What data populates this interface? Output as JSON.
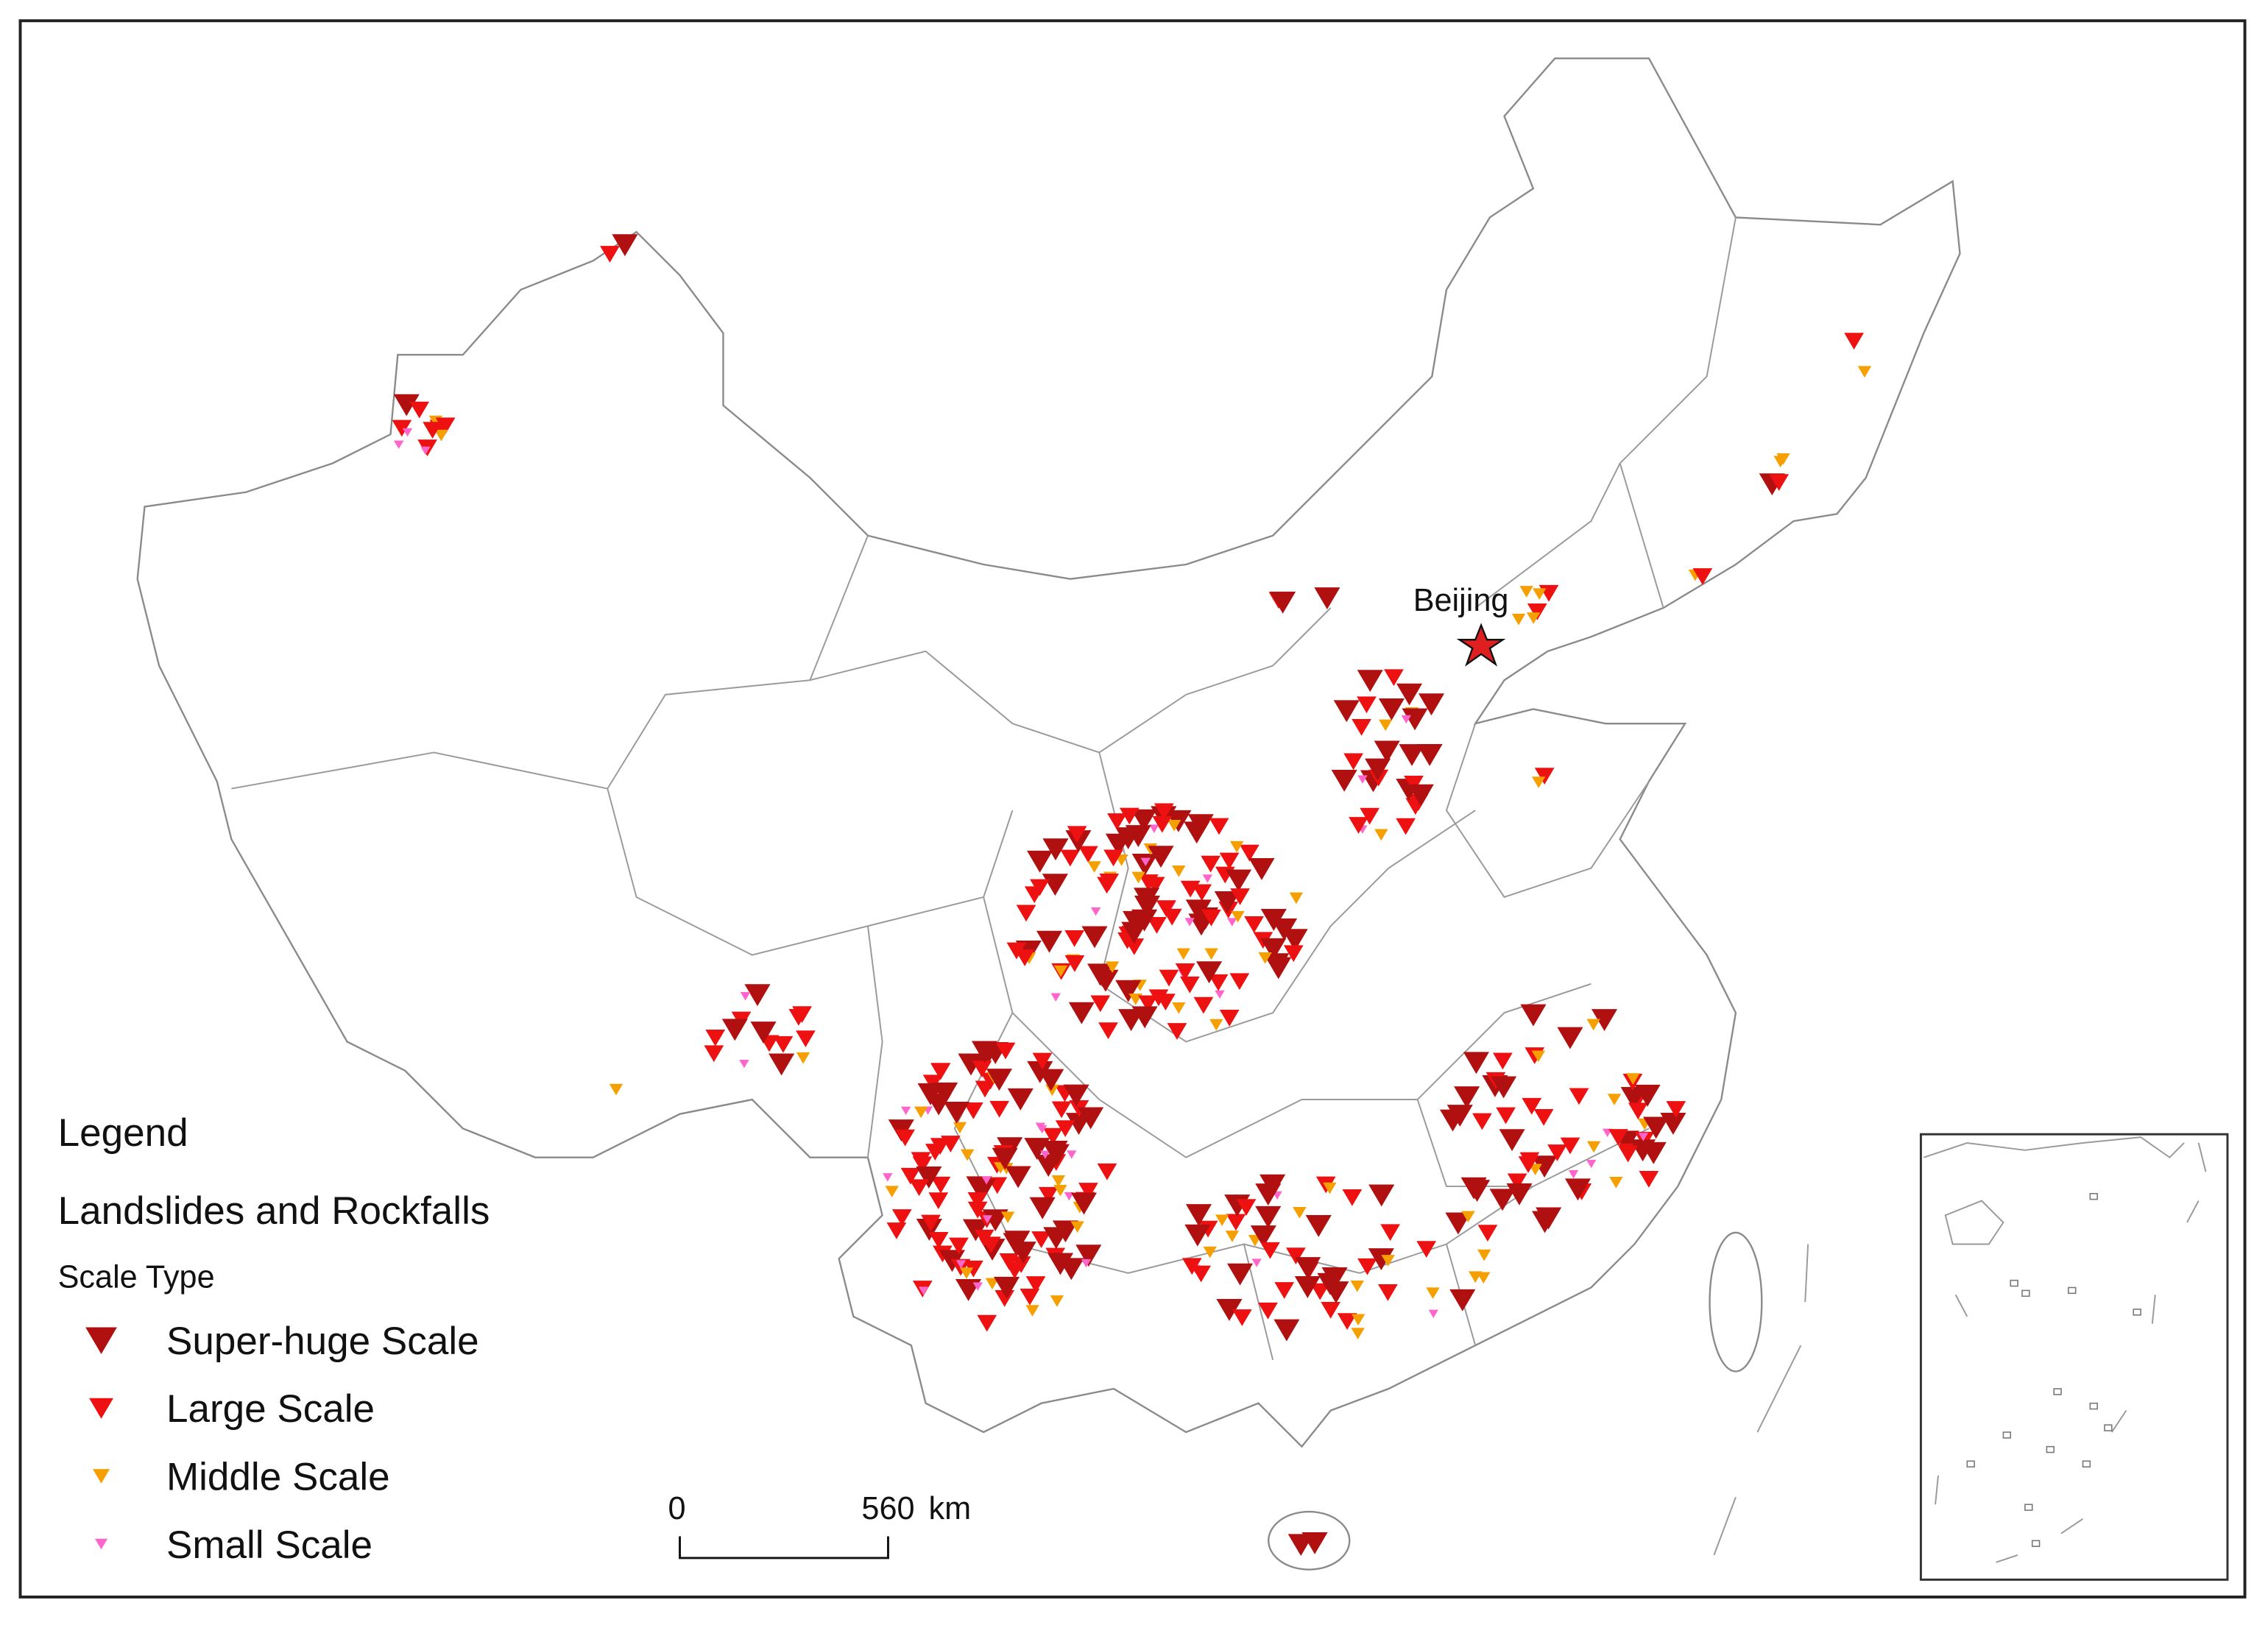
{
  "map": {
    "city_label": "Beijing",
    "legend": {
      "title": "Legend",
      "subtitle": "Landslides and Rockfalls",
      "group_title": "Scale Type",
      "items": [
        {
          "label": "Super-huge Scale",
          "color": "#b01010"
        },
        {
          "label": "Large Scale",
          "color": "#ee1111"
        },
        {
          "label": "Middle Scale",
          "color": "#f5a000"
        },
        {
          "label": "Small Scale",
          "color": "#ff66cc"
        }
      ]
    },
    "scale_bar": {
      "start": 0,
      "end": 560,
      "unit": "km"
    }
  }
}
